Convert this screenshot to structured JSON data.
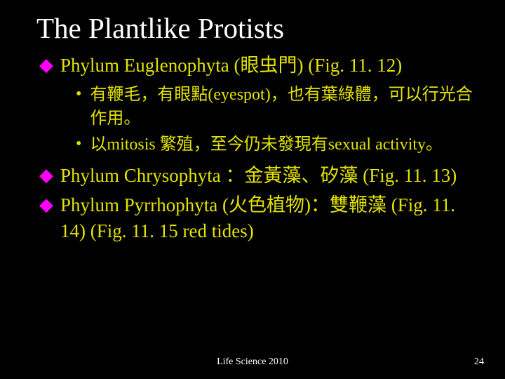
{
  "title": "The Plantlike Protists",
  "items": [
    {
      "text": "Phylum Euglenophyta (眼虫門) (Fig. 11. 12)",
      "sub": [
        "有鞭毛，有眼點(eyespot)，也有葉綠體，可以行光合作用。",
        "以mitosis 繁殖，至今仍未發現有sexual activity。"
      ]
    },
    {
      "text": "Phylum Chrysophyta ：金黃藻、矽藻 (Fig. 11. 13)",
      "sub": []
    },
    {
      "text": "Phylum Pyrrhophyta (火色植物)：雙鞭藻 (Fig. 11. 14) (Fig. 11. 15 red tides)",
      "sub": []
    }
  ],
  "footer": "Life Science 2010",
  "page": "24",
  "colors": {
    "background": "#000000",
    "title": "#ffffff",
    "bullet_major": "#ff00ff",
    "body_text": "#e2e200",
    "footer_text": "#ffffff"
  },
  "fonts": {
    "title_size_pt": 41,
    "top_size_pt": 27,
    "sub_size_pt": 24,
    "footer_size_pt": 14
  }
}
